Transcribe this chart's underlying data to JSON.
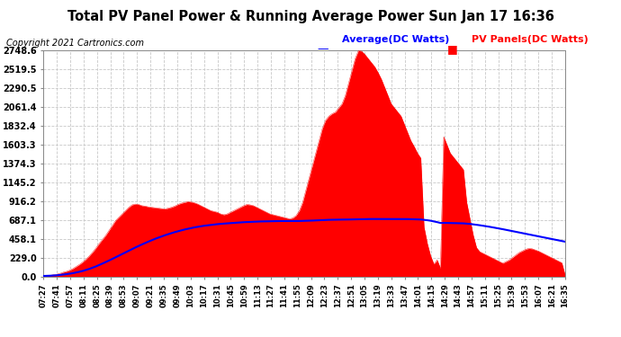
{
  "title": "Total PV Panel Power & Running Average Power Sun Jan 17 16:36",
  "copyright": "Copyright 2021 Cartronics.com",
  "legend_avg": "Average(DC Watts)",
  "legend_pv": "PV Panels(DC Watts)",
  "avg_color": "blue",
  "pv_color": "red",
  "background_color": "#ffffff",
  "grid_color": "#c8c8c8",
  "yticks": [
    0.0,
    229.0,
    458.1,
    687.1,
    916.2,
    1145.2,
    1374.3,
    1603.3,
    1832.4,
    2061.4,
    2290.5,
    2519.5,
    2748.6
  ],
  "ymax": 2748.6,
  "xtick_labels": [
    "07:27",
    "07:41",
    "07:57",
    "08:11",
    "08:25",
    "08:39",
    "08:53",
    "09:07",
    "09:21",
    "09:35",
    "09:49",
    "10:03",
    "10:17",
    "10:31",
    "10:45",
    "10:59",
    "11:13",
    "11:27",
    "11:41",
    "11:55",
    "12:09",
    "12:23",
    "12:37",
    "12:51",
    "13:05",
    "13:19",
    "13:33",
    "13:47",
    "14:01",
    "14:15",
    "14:29",
    "14:43",
    "14:57",
    "15:11",
    "15:25",
    "15:39",
    "15:53",
    "16:07",
    "16:21",
    "16:35"
  ],
  "pv_values": [
    5,
    8,
    12,
    18,
    25,
    35,
    50,
    60,
    75,
    95,
    120,
    145,
    175,
    210,
    250,
    295,
    345,
    400,
    450,
    500,
    560,
    620,
    680,
    720,
    760,
    800,
    840,
    870,
    880,
    875,
    860,
    855,
    845,
    840,
    835,
    830,
    825,
    820,
    830,
    840,
    855,
    875,
    890,
    900,
    910,
    905,
    895,
    880,
    860,
    840,
    820,
    800,
    790,
    780,
    760,
    750,
    760,
    780,
    800,
    820,
    840,
    860,
    875,
    870,
    860,
    840,
    820,
    800,
    780,
    760,
    750,
    740,
    730,
    720,
    710,
    700,
    710,
    740,
    800,
    900,
    1050,
    1200,
    1350,
    1500,
    1650,
    1800,
    1900,
    1950,
    1980,
    2000,
    2050,
    2100,
    2200,
    2350,
    2500,
    2650,
    2748,
    2740,
    2700,
    2650,
    2600,
    2550,
    2480,
    2400,
    2300,
    2200,
    2100,
    2050,
    2000,
    1950,
    1850,
    1750,
    1650,
    1580,
    1500,
    1440,
    600,
    400,
    250,
    150,
    200,
    100,
    1700,
    1600,
    1500,
    1450,
    1400,
    1350,
    1300,
    900,
    700,
    500,
    350,
    300,
    280,
    260,
    240,
    220,
    200,
    180,
    160,
    180,
    200,
    230,
    260,
    290,
    310,
    330,
    340,
    335,
    320,
    305,
    285,
    265,
    245,
    225,
    205,
    185,
    165,
    15
  ],
  "avg_values": [
    5,
    6,
    8,
    10,
    13,
    17,
    21,
    26,
    32,
    39,
    47,
    56,
    66,
    78,
    91,
    106,
    121,
    138,
    156,
    174,
    193,
    212,
    232,
    252,
    272,
    292,
    312,
    332,
    351,
    370,
    388,
    406,
    423,
    440,
    456,
    471,
    486,
    500,
    513,
    526,
    538,
    549,
    560,
    570,
    579,
    588,
    596,
    603,
    610,
    616,
    621,
    626,
    631,
    635,
    639,
    642,
    645,
    648,
    651,
    654,
    656,
    659,
    661,
    663,
    665,
    667,
    668,
    669,
    670,
    671,
    672,
    672,
    673,
    673,
    673,
    673,
    673,
    674,
    674,
    675,
    676,
    677,
    679,
    681,
    683,
    685,
    687,
    688,
    689,
    690,
    690,
    691,
    691,
    692,
    693,
    694,
    695,
    696,
    697,
    697,
    698,
    698,
    699,
    699,
    699,
    699,
    699,
    699,
    699,
    698,
    698,
    697,
    696,
    695,
    694,
    692,
    688,
    683,
    677,
    669,
    660,
    650,
    651,
    650,
    649,
    648,
    647,
    646,
    645,
    642,
    638,
    633,
    628,
    622,
    616,
    610,
    603,
    596,
    589,
    581,
    574,
    566,
    558,
    550,
    542,
    534,
    526,
    518,
    510,
    502,
    494,
    486,
    478,
    470,
    462,
    454,
    446,
    438,
    430,
    422
  ]
}
